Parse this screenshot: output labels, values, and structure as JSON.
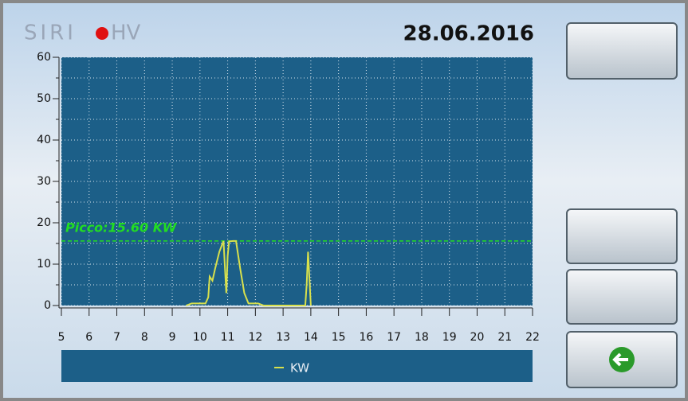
{
  "brand": "SIRI",
  "brand_suffix": "HV",
  "date": "28.06.2016",
  "chart_data": {
    "type": "line",
    "x": [
      9.5,
      9.7,
      10.0,
      10.2,
      10.3,
      10.35,
      10.45,
      10.55,
      10.7,
      10.85,
      10.95,
      11.0,
      11.05,
      11.2,
      11.3,
      11.45,
      11.6,
      11.75,
      11.9,
      12.1,
      12.3,
      13.8,
      13.85,
      13.9,
      14.0
    ],
    "series": [
      {
        "name": "KW",
        "color": "#d8e04c",
        "values": [
          0,
          0.5,
          0.5,
          0.5,
          2,
          7,
          6,
          9,
          13,
          15.6,
          3,
          12,
          15.5,
          15.6,
          15.6,
          9,
          3,
          0.5,
          0.5,
          0.5,
          0,
          0,
          5,
          13,
          0
        ]
      }
    ],
    "peak": {
      "value": 15.6,
      "label": "Picco:15.60 KW"
    },
    "xlim": [
      5,
      22
    ],
    "xticks": [
      5,
      6,
      7,
      8,
      9,
      10,
      11,
      12,
      13,
      14,
      15,
      16,
      17,
      18,
      19,
      20,
      21,
      22
    ],
    "ylim": [
      0,
      60
    ],
    "yticks": [
      0,
      10,
      20,
      30,
      40,
      50,
      60
    ],
    "yminor": [
      5,
      15,
      25,
      35,
      45,
      55
    ],
    "grid": true
  }
}
